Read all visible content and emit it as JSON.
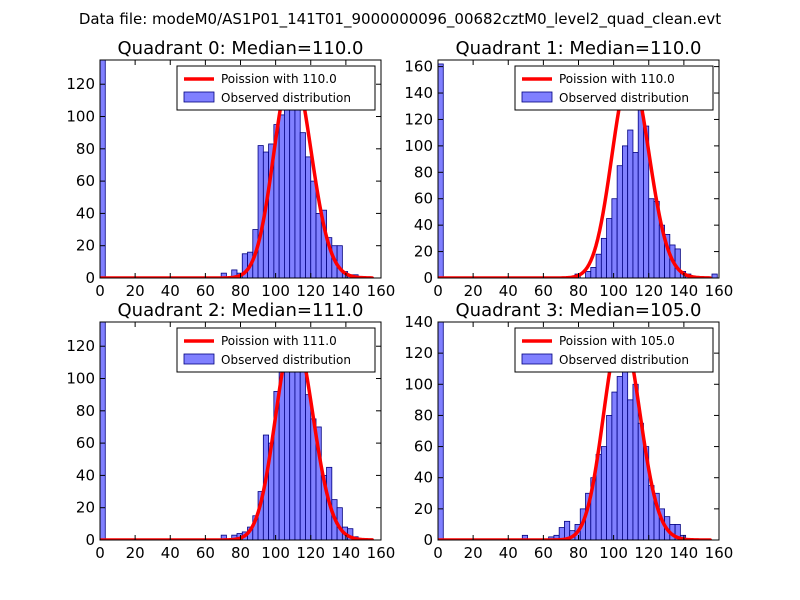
{
  "figure_title": "Data file: modeM0/AS1P01_141T01_9000000096_00682cztM0_level2_quad_clean.evt",
  "colors": {
    "bar_fill": "#8080ff",
    "bar_edge": "#000080",
    "curve": "#ff0000",
    "axis": "#000000"
  },
  "chart_data": [
    {
      "type": "bar",
      "title": "Quadrant 0: Median=110.0",
      "xlim": [
        0,
        160
      ],
      "ylim": [
        0,
        135
      ],
      "xticks": [
        0,
        20,
        40,
        60,
        80,
        100,
        120,
        140,
        160
      ],
      "yticks": [
        0,
        20,
        40,
        60,
        80,
        100,
        120
      ],
      "legend": [
        "Poission with 110.0",
        "Observed distribution"
      ],
      "legend_loc": "upper right",
      "bin_width": 3,
      "bin_start": [
        0,
        69,
        75,
        78,
        81,
        84,
        87,
        90,
        93,
        96,
        99,
        102,
        105,
        108,
        111,
        114,
        117,
        120,
        123,
        126,
        129,
        132,
        135,
        138,
        141,
        144,
        147,
        150
      ],
      "counts": [
        135,
        3,
        5,
        3,
        15,
        16,
        30,
        82,
        78,
        83,
        95,
        101,
        108,
        130,
        115,
        90,
        75,
        60,
        40,
        42,
        25,
        20,
        20,
        4,
        2,
        2,
        1,
        0
      ],
      "poisson_mean": 110.0,
      "poisson_scale": 130
    },
    {
      "type": "bar",
      "title": "Quadrant 1: Median=110.0",
      "xlim": [
        0,
        160
      ],
      "ylim": [
        0,
        165
      ],
      "xticks": [
        0,
        20,
        40,
        60,
        80,
        100,
        120,
        140,
        160
      ],
      "yticks": [
        0,
        20,
        40,
        60,
        80,
        100,
        120,
        140,
        160
      ],
      "legend": [
        "Poission with 110.0",
        "Observed distribution"
      ],
      "legend_loc": "upper right",
      "bin_width": 3,
      "bin_start": [
        0,
        78,
        84,
        87,
        90,
        93,
        96,
        99,
        102,
        105,
        108,
        111,
        114,
        117,
        120,
        123,
        126,
        129,
        132,
        135,
        138,
        141,
        156
      ],
      "counts": [
        162,
        3,
        5,
        8,
        18,
        30,
        45,
        60,
        85,
        100,
        112,
        95,
        145,
        115,
        60,
        58,
        40,
        33,
        25,
        22,
        5,
        3,
        3
      ],
      "poisson_mean": 110.0,
      "poisson_scale": 155
    },
    {
      "type": "bar",
      "title": "Quadrant 2: Median=111.0",
      "xlim": [
        0,
        160
      ],
      "ylim": [
        0,
        135
      ],
      "xticks": [
        0,
        20,
        40,
        60,
        80,
        100,
        120,
        140,
        160
      ],
      "yticks": [
        0,
        20,
        40,
        60,
        80,
        100,
        120
      ],
      "legend": [
        "Poission with 111.0",
        "Observed distribution"
      ],
      "legend_loc": "upper right",
      "bin_width": 3,
      "bin_start": [
        0,
        69,
        75,
        78,
        81,
        84,
        87,
        90,
        93,
        96,
        99,
        102,
        105,
        108,
        111,
        114,
        117,
        120,
        123,
        126,
        129,
        132,
        135,
        138,
        141,
        144,
        147
      ],
      "counts": [
        135,
        3,
        3,
        4,
        5,
        8,
        15,
        30,
        65,
        60,
        92,
        110,
        115,
        120,
        120,
        108,
        90,
        75,
        70,
        40,
        45,
        25,
        20,
        8,
        7,
        2,
        0
      ],
      "poisson_mean": 111.0,
      "poisson_scale": 128
    },
    {
      "type": "bar",
      "title": "Quadrant 3: Median=105.0",
      "xlim": [
        0,
        160
      ],
      "ylim": [
        0,
        140
      ],
      "xticks": [
        0,
        20,
        40,
        60,
        80,
        100,
        120,
        140,
        160
      ],
      "yticks": [
        0,
        20,
        40,
        60,
        80,
        100,
        120,
        140
      ],
      "legend": [
        "Poission with 105.0",
        "Observed distribution"
      ],
      "legend_loc": "upper right",
      "bin_width": 3,
      "bin_start": [
        0,
        48,
        63,
        66,
        69,
        72,
        75,
        78,
        81,
        84,
        87,
        90,
        93,
        96,
        99,
        102,
        105,
        108,
        111,
        114,
        117,
        120,
        123,
        126,
        129,
        132,
        135,
        138
      ],
      "counts": [
        140,
        3,
        2,
        3,
        8,
        12,
        6,
        10,
        20,
        30,
        40,
        55,
        60,
        80,
        95,
        105,
        110,
        90,
        100,
        75,
        60,
        35,
        30,
        20,
        15,
        10,
        10,
        3
      ],
      "poisson_mean": 105.0,
      "poisson_scale": 135
    }
  ]
}
